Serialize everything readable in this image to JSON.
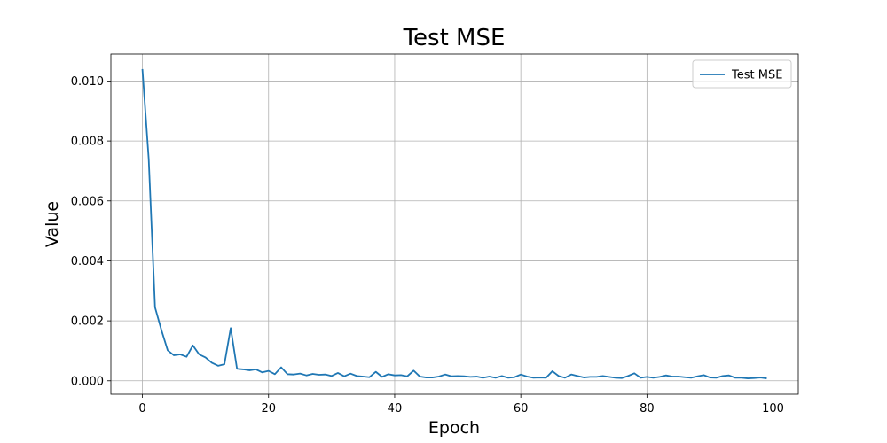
{
  "chart_data": {
    "type": "line",
    "title": "Test MSE",
    "xlabel": "Epoch",
    "ylabel": "Value",
    "xlim": [
      -5,
      104
    ],
    "ylim": [
      -0.00045,
      0.0109
    ],
    "grid": true,
    "legend_position": "top-right",
    "x_ticks": [
      0,
      20,
      40,
      60,
      80,
      100
    ],
    "x_tick_labels": [
      "0",
      "20",
      "40",
      "60",
      "80",
      "100"
    ],
    "y_ticks": [
      0,
      0.002,
      0.004,
      0.006,
      0.008,
      0.01
    ],
    "y_tick_labels": [
      "0.000",
      "0.002",
      "0.004",
      "0.006",
      "0.008",
      "0.010"
    ],
    "series": [
      {
        "name": "Test MSE",
        "color": "#1f77b4",
        "x": [
          0,
          1,
          2,
          3,
          4,
          5,
          6,
          7,
          8,
          9,
          10,
          11,
          12,
          13,
          14,
          15,
          16,
          17,
          18,
          19,
          20,
          21,
          22,
          23,
          24,
          25,
          26,
          27,
          28,
          29,
          30,
          31,
          32,
          33,
          34,
          35,
          36,
          37,
          38,
          39,
          40,
          41,
          42,
          43,
          44,
          45,
          46,
          47,
          48,
          49,
          50,
          51,
          52,
          53,
          54,
          55,
          56,
          57,
          58,
          59,
          60,
          61,
          62,
          63,
          64,
          65,
          66,
          67,
          68,
          69,
          70,
          71,
          72,
          73,
          74,
          75,
          76,
          77,
          78,
          79,
          80,
          81,
          82,
          83,
          84,
          85,
          86,
          87,
          88,
          89,
          90,
          91,
          92,
          93,
          94,
          95,
          96,
          97,
          98,
          99
        ],
        "values": [
          0.0104,
          0.0074,
          0.00245,
          0.0017,
          0.00102,
          0.00085,
          0.00088,
          0.0008,
          0.00118,
          0.00088,
          0.00078,
          0.0006,
          0.0005,
          0.00055,
          0.00176,
          0.0004,
          0.00038,
          0.00035,
          0.00038,
          0.00028,
          0.00033,
          0.00022,
          0.00045,
          0.00022,
          0.00021,
          0.00024,
          0.00018,
          0.00023,
          0.0002,
          0.00021,
          0.00016,
          0.00026,
          0.00015,
          0.00024,
          0.00016,
          0.00014,
          0.00012,
          0.0003,
          0.00013,
          0.00022,
          0.00018,
          0.00019,
          0.00015,
          0.00034,
          0.00014,
          0.00011,
          0.00011,
          0.00014,
          0.00021,
          0.00015,
          0.00016,
          0.00015,
          0.00013,
          0.00014,
          0.0001,
          0.00014,
          0.0001,
          0.00016,
          0.0001,
          0.00012,
          0.00021,
          0.00014,
          0.0001,
          0.00011,
          0.0001,
          0.00032,
          0.00016,
          0.0001,
          0.00021,
          0.00016,
          0.00011,
          0.00013,
          0.00013,
          0.00016,
          0.00013,
          0.0001,
          9e-05,
          0.00016,
          0.00025,
          0.0001,
          0.00013,
          0.0001,
          0.00013,
          0.00018,
          0.00014,
          0.00014,
          0.00012,
          0.0001,
          0.00015,
          0.00019,
          0.00011,
          0.0001,
          0.00016,
          0.00018,
          0.0001,
          0.0001,
          8e-05,
          9e-05,
          0.00011,
          8e-05
        ]
      }
    ]
  }
}
